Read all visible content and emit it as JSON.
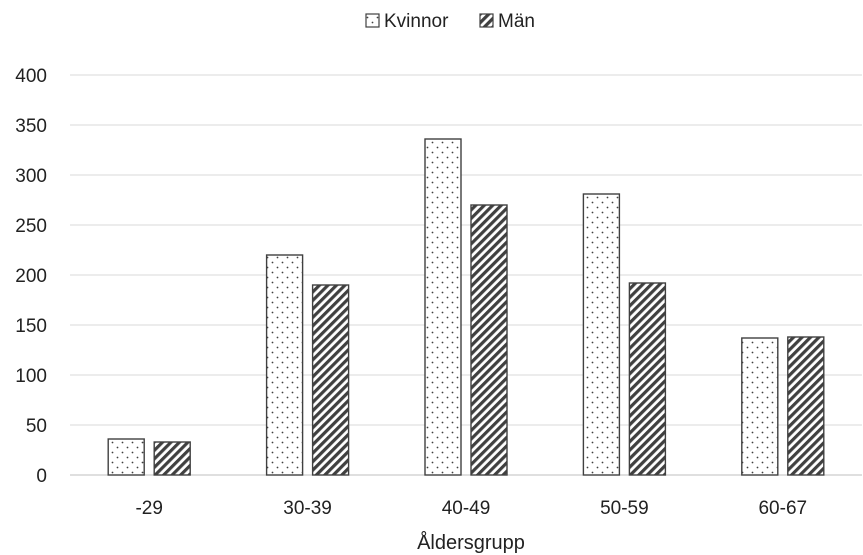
{
  "chart_data": {
    "type": "bar",
    "categories": [
      "-29",
      "30-39",
      "40-49",
      "50-59",
      "60-67"
    ],
    "series": [
      {
        "name": "Kvinnor",
        "values": [
          36,
          220,
          336,
          281,
          137
        ],
        "pattern": "dots"
      },
      {
        "name": "Män",
        "values": [
          33,
          190,
          270,
          192,
          138
        ],
        "pattern": "diagonal-stripes"
      }
    ],
    "xlabel": "Åldersgrupp",
    "ylabel": "",
    "ylim": [
      0,
      400
    ],
    "yticks": [
      "0",
      "50",
      "100",
      "150",
      "200",
      "250",
      "300",
      "350",
      "400"
    ],
    "grid": true,
    "legend": "top-center",
    "colors": {
      "bar_outline": "#404040",
      "pattern_ink": "#404040",
      "grid": "#d9d9d9",
      "text": "#222222"
    }
  }
}
